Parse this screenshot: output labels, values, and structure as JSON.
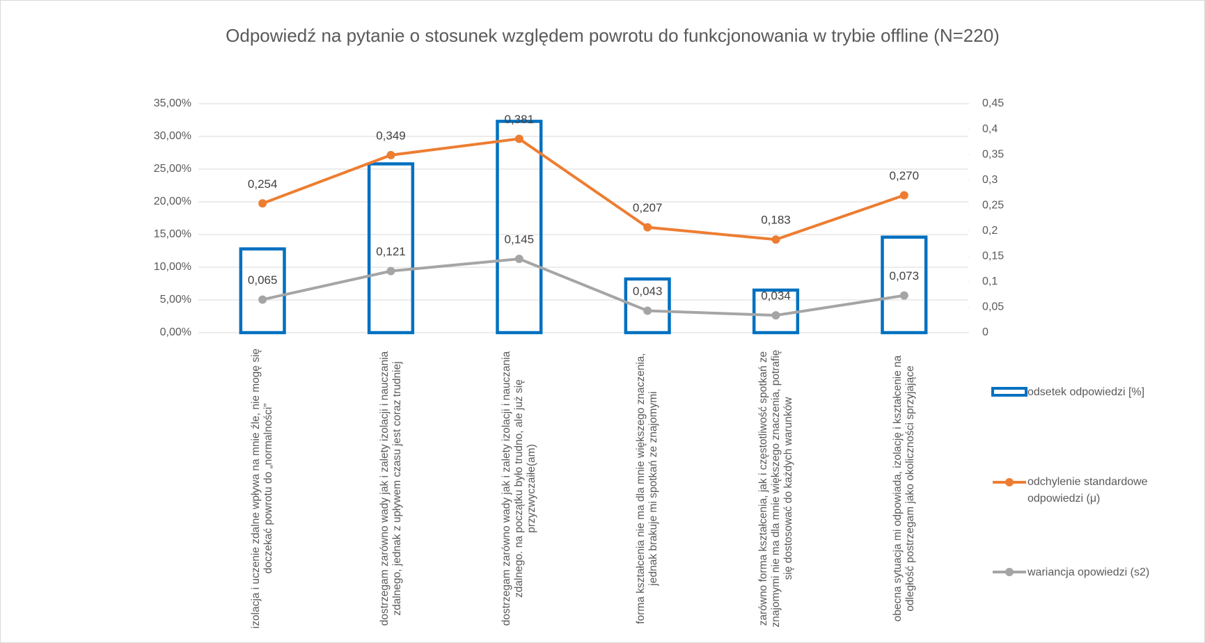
{
  "chart_data": {
    "type": "bar",
    "title": "Odpowiedź na pytanie o stosunek względem powrotu do funkcjonowania w trybie offline (N=220)",
    "categories": [
      "izolacja i uczenie zdalne wpływa na mnie źle, nie mogę się doczekać powrotu do „normalności”",
      "dostrzegam zarówno wady jak i zalety izolacji i nauczania zdalnego, jednak z upływem czasu jest coraz trudniej",
      "dostrzegam zarówno wady jak i zalety izolacji i nauczania zdalnego. na początku było trudno, ale już się przyzwyczaiłe(am)",
      "forma kształcenia nie ma dla mnie większego znaczenia, jednak brakuje mi spotkań ze znajomymi",
      "zarówno forma kształcenia, jak i częstotliwość spotkań ze znajomymi nie ma dla mnie większego znaczenia, potrafię się dostosować do każdych warunków",
      "obecna sytuacja mi odpowiada, izolację i kształcenie na odległość postrzegam jako okoliczności sprzyjające"
    ],
    "series": [
      {
        "name": "odsetek odpowiedzi [%]",
        "type": "bar",
        "color": "#0070c0",
        "values": [
          12.8,
          25.8,
          32.3,
          8.2,
          6.5,
          14.6
        ]
      },
      {
        "name": "odchylenie standardowe odpowiedzi (μ)",
        "type": "line",
        "axis": "y2",
        "color": "#ed7d31",
        "values": [
          0.254,
          0.349,
          0.381,
          0.207,
          0.183,
          0.27
        ],
        "value_labels": [
          "0,254",
          "0,349",
          "0,381",
          "0,207",
          "0,183",
          "0,270"
        ]
      },
      {
        "name": "wariancja opowiedzi (s2)",
        "type": "line",
        "axis": "y2",
        "color": "#a5a5a5",
        "values": [
          0.065,
          0.121,
          0.145,
          0.043,
          0.034,
          0.073
        ],
        "value_labels": [
          "0,065",
          "0,121",
          "0,145",
          "0,043",
          "0,034",
          "0,073"
        ]
      }
    ],
    "ylim": [
      0,
      35
    ],
    "yticks": [
      {
        "value": 0,
        "label": "0,00%"
      },
      {
        "value": 5,
        "label": "5,00%"
      },
      {
        "value": 10,
        "label": "10,00%"
      },
      {
        "value": 15,
        "label": "15,00%"
      },
      {
        "value": 20,
        "label": "20,00%"
      },
      {
        "value": 25,
        "label": "25,00%"
      },
      {
        "value": 30,
        "label": "30,00%"
      },
      {
        "value": 35,
        "label": "35,00%"
      }
    ],
    "y2lim": [
      0,
      0.45
    ],
    "y2ticks": [
      0,
      {
        "value": 0.05,
        "label": "0,05"
      },
      {
        "value": 0.1,
        "label": "0,1"
      },
      {
        "value": 0.15,
        "label": "0,15"
      },
      {
        "value": 0.2,
        "label": "0,2"
      },
      {
        "value": 0.25,
        "label": "0,25"
      },
      {
        "value": 0.3,
        "label": "0,3"
      },
      {
        "value": 0.35,
        "label": "0,35"
      },
      {
        "value": 0.4,
        "label": "0,4"
      },
      {
        "value": 0.45,
        "label": "0,45"
      }
    ],
    "grid": true,
    "legend": "right"
  }
}
